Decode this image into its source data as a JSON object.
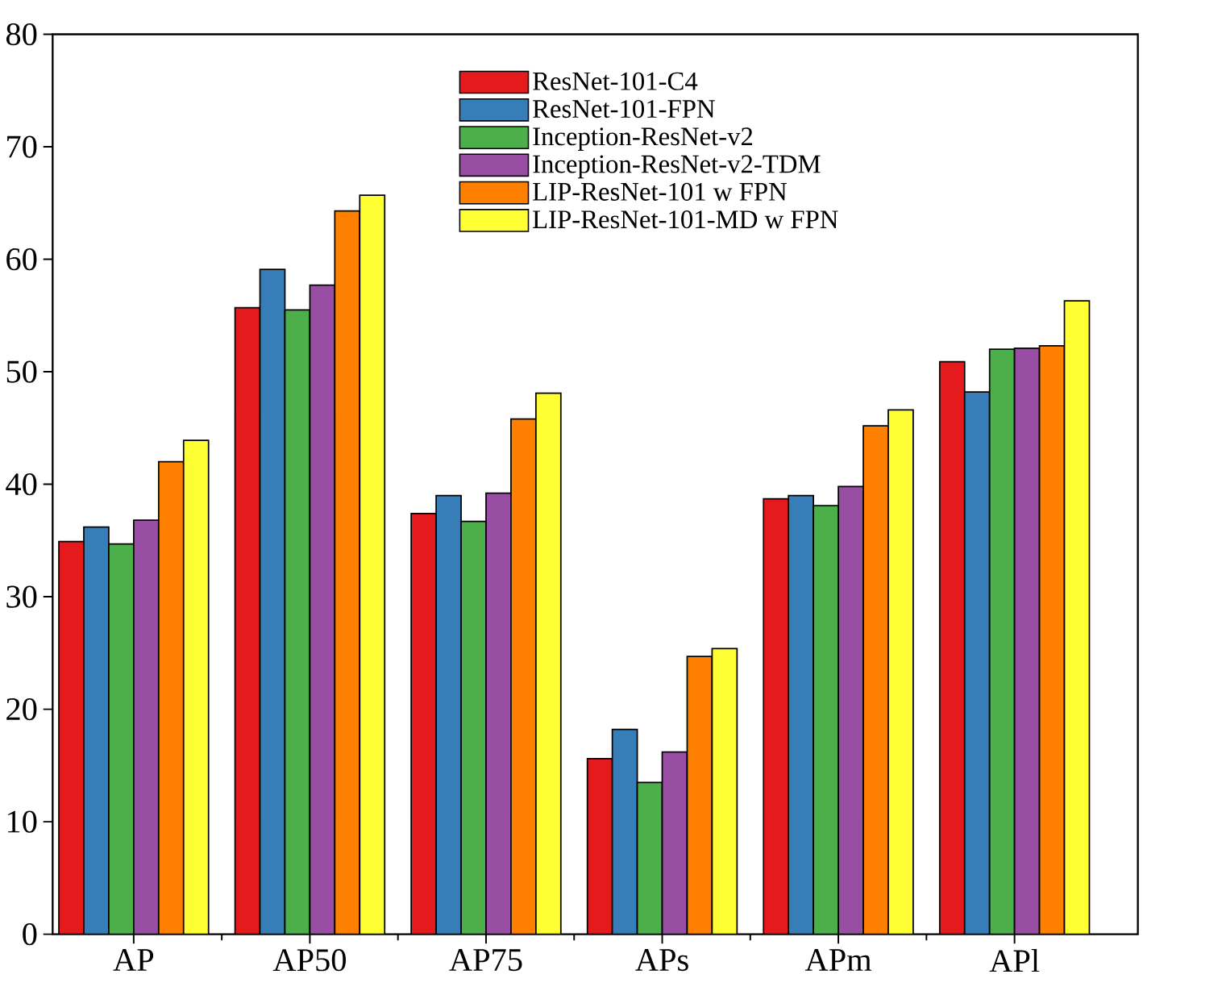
{
  "chart_data": {
    "type": "bar",
    "categories": [
      "AP",
      "AP50",
      "AP75",
      "APs",
      "APm",
      "APl"
    ],
    "series": [
      {
        "name": "ResNet-101-C4",
        "color": "#e41a1c",
        "values": [
          34.9,
          55.7,
          37.4,
          15.6,
          38.7,
          50.9
        ]
      },
      {
        "name": "ResNet-101-FPN",
        "color": "#377eb8",
        "values": [
          36.2,
          59.1,
          39.0,
          18.2,
          39.0,
          48.2
        ]
      },
      {
        "name": "Inception-ResNet-v2",
        "color": "#4daf4a",
        "values": [
          34.7,
          55.5,
          36.7,
          13.5,
          38.1,
          52.0
        ]
      },
      {
        "name": "Inception-ResNet-v2-TDM",
        "color": "#984ea3",
        "values": [
          36.8,
          57.7,
          39.2,
          16.2,
          39.8,
          52.1
        ]
      },
      {
        "name": "LIP-ResNet-101 w FPN",
        "color": "#ff7f00",
        "values": [
          42.0,
          64.3,
          45.8,
          24.7,
          45.2,
          52.3
        ]
      },
      {
        "name": "LIP-ResNet-101-MD w FPN",
        "color": "#ffff33",
        "values": [
          43.9,
          65.7,
          48.1,
          25.4,
          46.6,
          56.3
        ]
      }
    ],
    "ylim": [
      0,
      80
    ],
    "yticks": [
      0,
      10,
      20,
      30,
      40,
      50,
      60,
      70,
      80
    ],
    "legend": "top right"
  }
}
